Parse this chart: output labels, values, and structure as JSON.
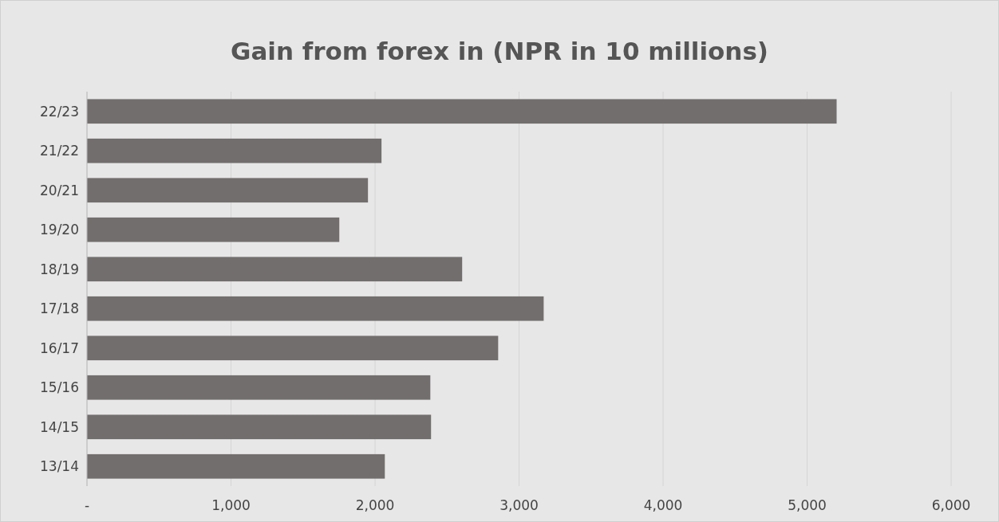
{
  "chart_data": {
    "type": "bar",
    "orientation": "horizontal",
    "title": "Gain from forex in (NPR in 10 millions)",
    "categories": [
      "22/23",
      "21/22",
      "20/21",
      "19/20",
      "18/19",
      "17/18",
      "16/17",
      "15/16",
      "14/15",
      "13/14"
    ],
    "values": [
      5205,
      2045,
      1951,
      1752,
      2605,
      3171,
      2855,
      2384,
      2389,
      2068
    ],
    "color": "#726e6d",
    "xlim": [
      0,
      6000
    ],
    "xticks": [
      {
        "value": 0,
        "label": "-"
      },
      {
        "value": 1000,
        "label": "1,000"
      },
      {
        "value": 2000,
        "label": "2,000"
      },
      {
        "value": 3000,
        "label": "3,000"
      },
      {
        "value": 4000,
        "label": "4,000"
      },
      {
        "value": 5000,
        "label": "5,000"
      },
      {
        "value": 6000,
        "label": "6,000"
      }
    ],
    "grid": "x"
  }
}
